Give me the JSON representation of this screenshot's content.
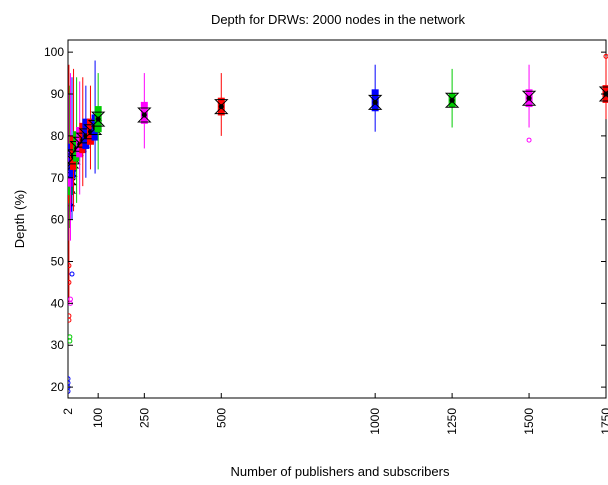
{
  "chart_data": {
    "type": "boxplot",
    "title": "Depth for DRWs: 2000 nodes in the network",
    "x_label": "Number of publishers and subscribers",
    "y_label": "Depth (%)",
    "xlim": [
      2,
      1750
    ],
    "ylim": [
      17.4,
      102.9
    ],
    "xticks": [
      2,
      100,
      250,
      500,
      1000,
      1250,
      1500,
      1750
    ],
    "yticks": [
      20,
      30,
      40,
      50,
      60,
      70,
      80,
      90,
      100
    ],
    "boxes": [
      {
        "x": 2,
        "color": "#0000ff",
        "median": 65,
        "q1": 62,
        "q3": 70,
        "low": 55,
        "high": 90,
        "outliers": [
          22,
          21,
          20,
          19
        ]
      },
      {
        "x": 5,
        "color": "#ff0000",
        "median": 68,
        "q1": 64,
        "q3": 72,
        "low": 40,
        "high": 97,
        "outliers": [
          49,
          45,
          37,
          36
        ]
      },
      {
        "x": 8,
        "color": "#00cc00",
        "median": 70,
        "q1": 66,
        "q3": 74,
        "low": 58,
        "high": 92,
        "outliers": [
          32,
          31
        ]
      },
      {
        "x": 10,
        "color": "#ff00ff",
        "median": 72,
        "q1": 68,
        "q3": 76,
        "low": 55,
        "high": 95,
        "outliers": [
          41,
          40
        ]
      },
      {
        "x": 15,
        "color": "#0000ff",
        "median": 74,
        "q1": 70,
        "q3": 78,
        "low": 60,
        "high": 94,
        "outliers": [
          47
        ]
      },
      {
        "x": 20,
        "color": "#ff0000",
        "median": 75,
        "q1": 72,
        "q3": 80,
        "low": 62,
        "high": 96,
        "outliers": []
      },
      {
        "x": 30,
        "color": "#00cc00",
        "median": 77,
        "q1": 74,
        "q3": 81,
        "low": 64,
        "high": 94,
        "outliers": []
      },
      {
        "x": 40,
        "color": "#ff00ff",
        "median": 78,
        "q1": 75,
        "q3": 82,
        "low": 66,
        "high": 93,
        "outliers": []
      },
      {
        "x": 50,
        "color": "#ff0000",
        "median": 79,
        "q1": 76,
        "q3": 83,
        "low": 68,
        "high": 94,
        "outliers": []
      },
      {
        "x": 60,
        "color": "#0000ff",
        "median": 80,
        "q1": 77,
        "q3": 84,
        "low": 70,
        "high": 92,
        "outliers": []
      },
      {
        "x": 75,
        "color": "#ff0000",
        "median": 81,
        "q1": 78,
        "q3": 84,
        "low": 72,
        "high": 92,
        "outliers": []
      },
      {
        "x": 90,
        "color": "#0000ff",
        "median": 82,
        "q1": 79,
        "q3": 85,
        "low": 71,
        "high": 98,
        "outliers": []
      },
      {
        "x": 100,
        "color": "#00cc00",
        "median": 84,
        "q1": 81,
        "q3": 87,
        "low": 72,
        "high": 95,
        "outliers": []
      },
      {
        "x": 250,
        "color": "#ff00ff",
        "median": 85,
        "q1": 83,
        "q3": 88,
        "low": 77,
        "high": 95,
        "outliers": []
      },
      {
        "x": 500,
        "color": "#ff0000",
        "median": 87,
        "q1": 85,
        "q3": 89,
        "low": 80,
        "high": 95,
        "outliers": []
      },
      {
        "x": 1000,
        "color": "#0000ff",
        "median": 88,
        "q1": 86,
        "q3": 91,
        "low": 81,
        "high": 97,
        "outliers": []
      },
      {
        "x": 1250,
        "color": "#00cc00",
        "median": 88.5,
        "q1": 87,
        "q3": 90,
        "low": 82,
        "high": 96,
        "outliers": []
      },
      {
        "x": 1500,
        "color": "#ff00ff",
        "median": 89,
        "q1": 87,
        "q3": 91,
        "low": 82,
        "high": 97,
        "outliers": [
          79
        ]
      },
      {
        "x": 1750,
        "color": "#ff0000",
        "median": 90,
        "q1": 88,
        "q3": 92,
        "low": 84,
        "high": 99,
        "outliers": [
          99
        ]
      }
    ]
  }
}
